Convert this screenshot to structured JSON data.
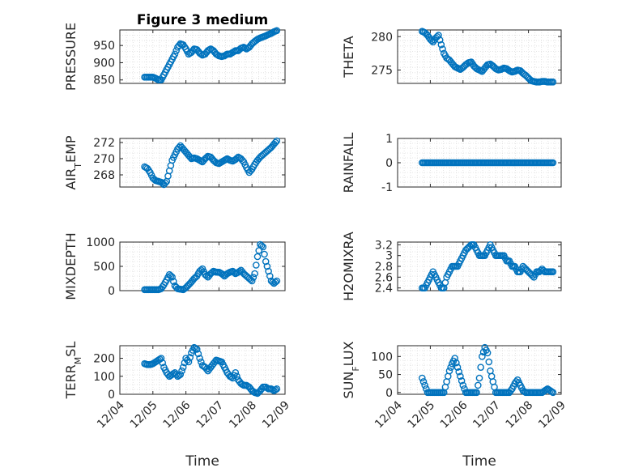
{
  "figure": {
    "marker_color": "#0072bd",
    "axes_color": "#262626",
    "grid_color": "#dcdcdc"
  },
  "chart_data": [
    {
      "type": "scatter",
      "title": "Figure 3 medium",
      "xlabel": "",
      "ylabel": "PRESSURE",
      "xlim": [
        "12/04",
        "12/09"
      ],
      "ylim": [
        840,
        995
      ],
      "yticks": [
        850,
        900,
        950
      ],
      "x": [
        "12/04 18:00",
        "12/04 20:00",
        "12/04 22:00",
        "12/05 00:00",
        "12/05 02:00",
        "12/05 04:00",
        "12/05 06:00",
        "12/05 08:00",
        "12/05 10:00",
        "12/05 12:00",
        "12/05 14:00",
        "12/05 16:00",
        "12/05 18:00",
        "12/05 20:00",
        "12/05 22:00",
        "12/06 00:00",
        "12/06 02:00",
        "12/06 04:00",
        "12/06 06:00",
        "12/06 08:00",
        "12/06 10:00",
        "12/06 12:00",
        "12/06 14:00",
        "12/06 16:00",
        "12/06 18:00",
        "12/06 20:00",
        "12/06 22:00",
        "12/07 00:00",
        "12/07 02:00",
        "12/07 04:00",
        "12/07 06:00",
        "12/07 08:00",
        "12/07 10:00",
        "12/07 12:00",
        "12/07 14:00",
        "12/07 16:00",
        "12/07 18:00",
        "12/07 20:00",
        "12/07 22:00",
        "12/08 00:00",
        "12/08 02:00",
        "12/08 04:00",
        "12/08 06:00",
        "12/08 08:00",
        "12/08 10:00",
        "12/08 12:00",
        "12/08 14:00",
        "12/08 16:00",
        "12/08 18:00"
      ],
      "y": [
        858,
        858,
        858,
        858,
        855,
        850,
        850,
        865,
        880,
        895,
        910,
        925,
        945,
        955,
        952,
        940,
        925,
        930,
        940,
        938,
        928,
        922,
        925,
        935,
        940,
        935,
        925,
        920,
        918,
        920,
        925,
        925,
        930,
        935,
        935,
        942,
        945,
        940,
        945,
        955,
        962,
        968,
        972,
        975,
        978,
        982,
        985,
        990,
        993
      ]
    },
    {
      "type": "scatter",
      "title": "",
      "xlabel": "",
      "ylabel": "THETA",
      "xlim": [
        "12/04",
        "12/09"
      ],
      "ylim": [
        273,
        281
      ],
      "yticks": [
        275,
        280
      ],
      "x": [
        "12/04 18:00",
        "12/04 20:00",
        "12/04 22:00",
        "12/05 00:00",
        "12/05 02:00",
        "12/05 04:00",
        "12/05 06:00",
        "12/05 08:00",
        "12/05 10:00",
        "12/05 12:00",
        "12/05 14:00",
        "12/05 16:00",
        "12/05 18:00",
        "12/05 20:00",
        "12/05 22:00",
        "12/06 00:00",
        "12/06 02:00",
        "12/06 04:00",
        "12/06 06:00",
        "12/06 08:00",
        "12/06 10:00",
        "12/06 12:00",
        "12/06 14:00",
        "12/06 16:00",
        "12/06 18:00",
        "12/06 20:00",
        "12/06 22:00",
        "12/07 00:00",
        "12/07 02:00",
        "12/07 04:00",
        "12/07 06:00",
        "12/07 08:00",
        "12/07 10:00",
        "12/07 12:00",
        "12/07 14:00",
        "12/07 16:00",
        "12/07 18:00",
        "12/07 20:00",
        "12/07 22:00",
        "12/08 00:00",
        "12/08 02:00",
        "12/08 04:00",
        "12/08 06:00",
        "12/08 08:00",
        "12/08 10:00",
        "12/08 12:00",
        "12/08 14:00",
        "12/08 16:00",
        "12/08 18:00"
      ],
      "y": [
        280.8,
        280.6,
        280.2,
        279.6,
        279.2,
        279.8,
        280.2,
        278.8,
        277.5,
        276.8,
        276.5,
        276.0,
        275.5,
        275.3,
        275.1,
        275.4,
        275.8,
        276.1,
        276.2,
        275.6,
        275.2,
        275.0,
        274.8,
        275.3,
        275.8,
        275.9,
        275.6,
        275.2,
        275.0,
        275.1,
        275.3,
        275.2,
        274.9,
        274.7,
        274.8,
        275.0,
        274.9,
        274.5,
        274.2,
        273.8,
        273.4,
        273.3,
        273.2,
        273.2,
        273.3,
        273.3,
        273.2,
        273.2,
        273.2
      ]
    },
    {
      "type": "scatter",
      "title": "",
      "xlabel": "",
      "ylabel": "AIR_TEMP",
      "xlim": [
        "12/04",
        "12/09"
      ],
      "ylim": [
        266.5,
        272.5
      ],
      "yticks": [
        268,
        270,
        272
      ],
      "x": [
        "12/04 18:00",
        "12/04 20:00",
        "12/04 22:00",
        "12/05 00:00",
        "12/05 02:00",
        "12/05 04:00",
        "12/05 06:00",
        "12/05 08:00",
        "12/05 10:00",
        "12/05 12:00",
        "12/05 14:00",
        "12/05 16:00",
        "12/05 18:00",
        "12/05 20:00",
        "12/05 22:00",
        "12/06 00:00",
        "12/06 02:00",
        "12/06 04:00",
        "12/06 06:00",
        "12/06 08:00",
        "12/06 10:00",
        "12/06 12:00",
        "12/06 14:00",
        "12/06 16:00",
        "12/06 18:00",
        "12/06 20:00",
        "12/06 22:00",
        "12/07 00:00",
        "12/07 02:00",
        "12/07 04:00",
        "12/07 06:00",
        "12/07 08:00",
        "12/07 10:00",
        "12/07 12:00",
        "12/07 14:00",
        "12/07 16:00",
        "12/07 18:00",
        "12/07 20:00",
        "12/07 22:00",
        "12/08 00:00",
        "12/08 02:00",
        "12/08 04:00",
        "12/08 06:00",
        "12/08 08:00",
        "12/08 10:00",
        "12/08 12:00",
        "12/08 14:00",
        "12/08 16:00",
        "12/08 18:00"
      ],
      "y": [
        269.0,
        268.8,
        268.3,
        267.6,
        267.3,
        267.2,
        267.1,
        266.8,
        267.2,
        268.5,
        269.8,
        270.5,
        271.2,
        271.6,
        271.2,
        270.8,
        270.4,
        270.0,
        270.1,
        270.0,
        269.8,
        269.6,
        270.0,
        270.3,
        270.2,
        269.8,
        269.5,
        269.4,
        269.6,
        269.8,
        270.0,
        269.8,
        269.7,
        269.9,
        270.2,
        270.0,
        269.6,
        268.9,
        268.3,
        268.7,
        269.3,
        269.8,
        270.2,
        270.5,
        270.8,
        271.1,
        271.4,
        271.8,
        272.2
      ]
    },
    {
      "type": "scatter",
      "title": "",
      "xlabel": "",
      "ylabel": "RAINFALL",
      "xlim": [
        "12/04",
        "12/09"
      ],
      "ylim": [
        -1,
        1
      ],
      "yticks": [
        -1,
        0,
        1
      ],
      "x": [
        "12/04 18:00",
        "12/04 20:00",
        "12/04 22:00",
        "12/05 00:00",
        "12/05 02:00",
        "12/05 04:00",
        "12/05 06:00",
        "12/05 08:00",
        "12/05 10:00",
        "12/05 12:00",
        "12/05 14:00",
        "12/05 16:00",
        "12/05 18:00",
        "12/05 20:00",
        "12/05 22:00",
        "12/06 00:00",
        "12/06 02:00",
        "12/06 04:00",
        "12/06 06:00",
        "12/06 08:00",
        "12/06 10:00",
        "12/06 12:00",
        "12/06 14:00",
        "12/06 16:00",
        "12/06 18:00",
        "12/06 20:00",
        "12/06 22:00",
        "12/07 00:00",
        "12/07 02:00",
        "12/07 04:00",
        "12/07 06:00",
        "12/07 08:00",
        "12/07 10:00",
        "12/07 12:00",
        "12/07 14:00",
        "12/07 16:00",
        "12/07 18:00",
        "12/07 20:00",
        "12/07 22:00",
        "12/08 00:00",
        "12/08 02:00",
        "12/08 04:00",
        "12/08 06:00",
        "12/08 08:00",
        "12/08 10:00",
        "12/08 12:00",
        "12/08 14:00",
        "12/08 16:00",
        "12/08 18:00"
      ],
      "y": [
        0,
        0,
        0,
        0,
        0,
        0,
        0,
        0,
        0,
        0,
        0,
        0,
        0,
        0,
        0,
        0,
        0,
        0,
        0,
        0,
        0,
        0,
        0,
        0,
        0,
        0,
        0,
        0,
        0,
        0,
        0,
        0,
        0,
        0,
        0,
        0,
        0,
        0,
        0,
        0,
        0,
        0,
        0,
        0,
        0,
        0,
        0,
        0,
        0
      ]
    },
    {
      "type": "scatter",
      "title": "",
      "xlabel": "",
      "ylabel": "MIXDEPTH",
      "xlim": [
        "12/04",
        "12/09"
      ],
      "ylim": [
        0,
        1000
      ],
      "yticks": [
        0,
        500,
        1000
      ],
      "x": [
        "12/04 18:00",
        "12/04 20:00",
        "12/04 22:00",
        "12/05 00:00",
        "12/05 02:00",
        "12/05 04:00",
        "12/05 06:00",
        "12/05 08:00",
        "12/05 10:00",
        "12/05 12:00",
        "12/05 14:00",
        "12/05 16:00",
        "12/05 18:00",
        "12/05 20:00",
        "12/05 22:00",
        "12/06 00:00",
        "12/06 02:00",
        "12/06 04:00",
        "12/06 06:00",
        "12/06 08:00",
        "12/06 10:00",
        "12/06 12:00",
        "12/06 14:00",
        "12/06 16:00",
        "12/06 18:00",
        "12/06 20:00",
        "12/06 22:00",
        "12/07 00:00",
        "12/07 02:00",
        "12/07 04:00",
        "12/07 06:00",
        "12/07 08:00",
        "12/07 10:00",
        "12/07 12:00",
        "12/07 14:00",
        "12/07 16:00",
        "12/07 18:00",
        "12/07 20:00",
        "12/07 22:00",
        "12/08 00:00",
        "12/08 02:00",
        "12/08 04:00",
        "12/08 06:00",
        "12/08 08:00",
        "12/08 10:00",
        "12/08 12:00",
        "12/08 14:00",
        "12/08 16:00",
        "12/08 18:00"
      ],
      "y": [
        20,
        20,
        20,
        20,
        20,
        20,
        40,
        120,
        220,
        330,
        280,
        100,
        40,
        30,
        20,
        60,
        120,
        180,
        250,
        300,
        400,
        450,
        330,
        280,
        350,
        400,
        380,
        380,
        350,
        300,
        350,
        380,
        400,
        350,
        380,
        420,
        350,
        300,
        250,
        200,
        350,
        700,
        950,
        900,
        600,
        400,
        200,
        150,
        200
      ]
    },
    {
      "type": "scatter",
      "title": "",
      "xlabel": "",
      "ylabel": "H2OMIXRA",
      "xlim": [
        "12/04",
        "12/09"
      ],
      "ylim": [
        2.35,
        3.25
      ],
      "yticks": [
        2.4,
        2.6,
        2.8,
        3,
        3.2
      ],
      "x": [
        "12/04 18:00",
        "12/04 20:00",
        "12/04 22:00",
        "12/05 00:00",
        "12/05 02:00",
        "12/05 04:00",
        "12/05 06:00",
        "12/05 08:00",
        "12/05 10:00",
        "12/05 12:00",
        "12/05 14:00",
        "12/05 16:00",
        "12/05 18:00",
        "12/05 20:00",
        "12/05 22:00",
        "12/06 00:00",
        "12/06 02:00",
        "12/06 04:00",
        "12/06 06:00",
        "12/06 08:00",
        "12/06 10:00",
        "12/06 12:00",
        "12/06 14:00",
        "12/06 16:00",
        "12/06 18:00",
        "12/06 20:00",
        "12/06 22:00",
        "12/07 00:00",
        "12/07 02:00",
        "12/07 04:00",
        "12/07 06:00",
        "12/07 08:00",
        "12/07 10:00",
        "12/07 12:00",
        "12/07 14:00",
        "12/07 16:00",
        "12/07 18:00",
        "12/07 20:00",
        "12/07 22:00",
        "12/08 00:00",
        "12/08 02:00",
        "12/08 04:00",
        "12/08 06:00",
        "12/08 08:00",
        "12/08 10:00",
        "12/08 12:00",
        "12/08 14:00",
        "12/08 16:00",
        "12/08 18:00"
      ],
      "y": [
        2.4,
        2.4,
        2.5,
        2.6,
        2.7,
        2.6,
        2.5,
        2.4,
        2.4,
        2.6,
        2.7,
        2.8,
        2.8,
        2.8,
        2.9,
        3.0,
        3.1,
        3.15,
        3.2,
        3.2,
        3.1,
        3.0,
        3.0,
        3.0,
        3.1,
        3.2,
        3.1,
        3.0,
        3.0,
        3.0,
        3.0,
        2.9,
        2.9,
        2.8,
        2.8,
        2.7,
        2.7,
        2.8,
        2.75,
        2.7,
        2.65,
        2.6,
        2.7,
        2.7,
        2.75,
        2.7,
        2.7,
        2.7,
        2.7
      ]
    },
    {
      "type": "scatter",
      "title": "",
      "xlabel": "Time",
      "ylabel": "TERR_MSL",
      "xlim": [
        "12/04",
        "12/09"
      ],
      "ylim": [
        0,
        270
      ],
      "yticks": [
        0,
        100,
        200
      ],
      "xticks": [
        "12/04",
        "12/05",
        "12/06",
        "12/07",
        "12/08",
        "12/09"
      ],
      "x": [
        "12/04 18:00",
        "12/04 20:00",
        "12/04 22:00",
        "12/05 00:00",
        "12/05 02:00",
        "12/05 04:00",
        "12/05 06:00",
        "12/05 08:00",
        "12/05 10:00",
        "12/05 12:00",
        "12/05 14:00",
        "12/05 16:00",
        "12/05 18:00",
        "12/05 20:00",
        "12/05 22:00",
        "12/06 00:00",
        "12/06 02:00",
        "12/06 04:00",
        "12/06 06:00",
        "12/06 08:00",
        "12/06 10:00",
        "12/06 12:00",
        "12/06 14:00",
        "12/06 16:00",
        "12/06 18:00",
        "12/06 20:00",
        "12/06 22:00",
        "12/07 00:00",
        "12/07 02:00",
        "12/07 04:00",
        "12/07 06:00",
        "12/07 08:00",
        "12/07 10:00",
        "12/07 12:00",
        "12/07 14:00",
        "12/07 16:00",
        "12/07 18:00",
        "12/07 20:00",
        "12/07 22:00",
        "12/08 00:00",
        "12/08 02:00",
        "12/08 04:00",
        "12/08 06:00",
        "12/08 08:00",
        "12/08 10:00",
        "12/08 12:00",
        "12/08 14:00",
        "12/08 16:00",
        "12/08 18:00"
      ],
      "y": [
        170,
        165,
        165,
        170,
        180,
        190,
        200,
        150,
        120,
        100,
        110,
        120,
        100,
        110,
        150,
        200,
        180,
        230,
        260,
        250,
        200,
        160,
        150,
        130,
        150,
        170,
        190,
        185,
        180,
        150,
        120,
        100,
        90,
        120,
        80,
        60,
        50,
        50,
        40,
        20,
        10,
        5,
        20,
        40,
        40,
        30,
        30,
        20,
        30
      ]
    },
    {
      "type": "scatter",
      "title": "",
      "xlabel": "Time",
      "ylabel": "SUN_FLUX",
      "xlim": [
        "12/04",
        "12/09"
      ],
      "ylim": [
        -5,
        130
      ],
      "yticks": [
        0,
        50,
        100
      ],
      "xticks": [
        "12/04",
        "12/05",
        "12/06",
        "12/07",
        "12/08",
        "12/09"
      ],
      "x": [
        "12/04 18:00",
        "12/04 20:00",
        "12/04 22:00",
        "12/05 00:00",
        "12/05 02:00",
        "12/05 04:00",
        "12/05 06:00",
        "12/05 08:00",
        "12/05 10:00",
        "12/05 12:00",
        "12/05 14:00",
        "12/05 16:00",
        "12/05 18:00",
        "12/05 20:00",
        "12/05 22:00",
        "12/06 00:00",
        "12/06 02:00",
        "12/06 04:00",
        "12/06 06:00",
        "12/06 08:00",
        "12/06 10:00",
        "12/06 12:00",
        "12/06 14:00",
        "12/06 16:00",
        "12/06 18:00",
        "12/06 20:00",
        "12/06 22:00",
        "12/07 00:00",
        "12/07 02:00",
        "12/07 04:00",
        "12/07 06:00",
        "12/07 08:00",
        "12/07 10:00",
        "12/07 12:00",
        "12/07 14:00",
        "12/07 16:00",
        "12/07 18:00",
        "12/07 20:00",
        "12/07 22:00",
        "12/08 00:00",
        "12/08 02:00",
        "12/08 04:00",
        "12/08 06:00",
        "12/08 08:00",
        "12/08 10:00",
        "12/08 12:00",
        "12/08 14:00",
        "12/08 16:00",
        "12/08 18:00"
      ],
      "y": [
        40,
        20,
        0,
        0,
        0,
        0,
        0,
        0,
        0,
        30,
        60,
        80,
        95,
        70,
        45,
        20,
        0,
        0,
        0,
        0,
        0,
        40,
        100,
        125,
        110,
        60,
        30,
        0,
        0,
        0,
        0,
        0,
        0,
        10,
        25,
        35,
        20,
        5,
        0,
        0,
        0,
        0,
        0,
        0,
        0,
        5,
        10,
        5,
        0
      ]
    }
  ]
}
